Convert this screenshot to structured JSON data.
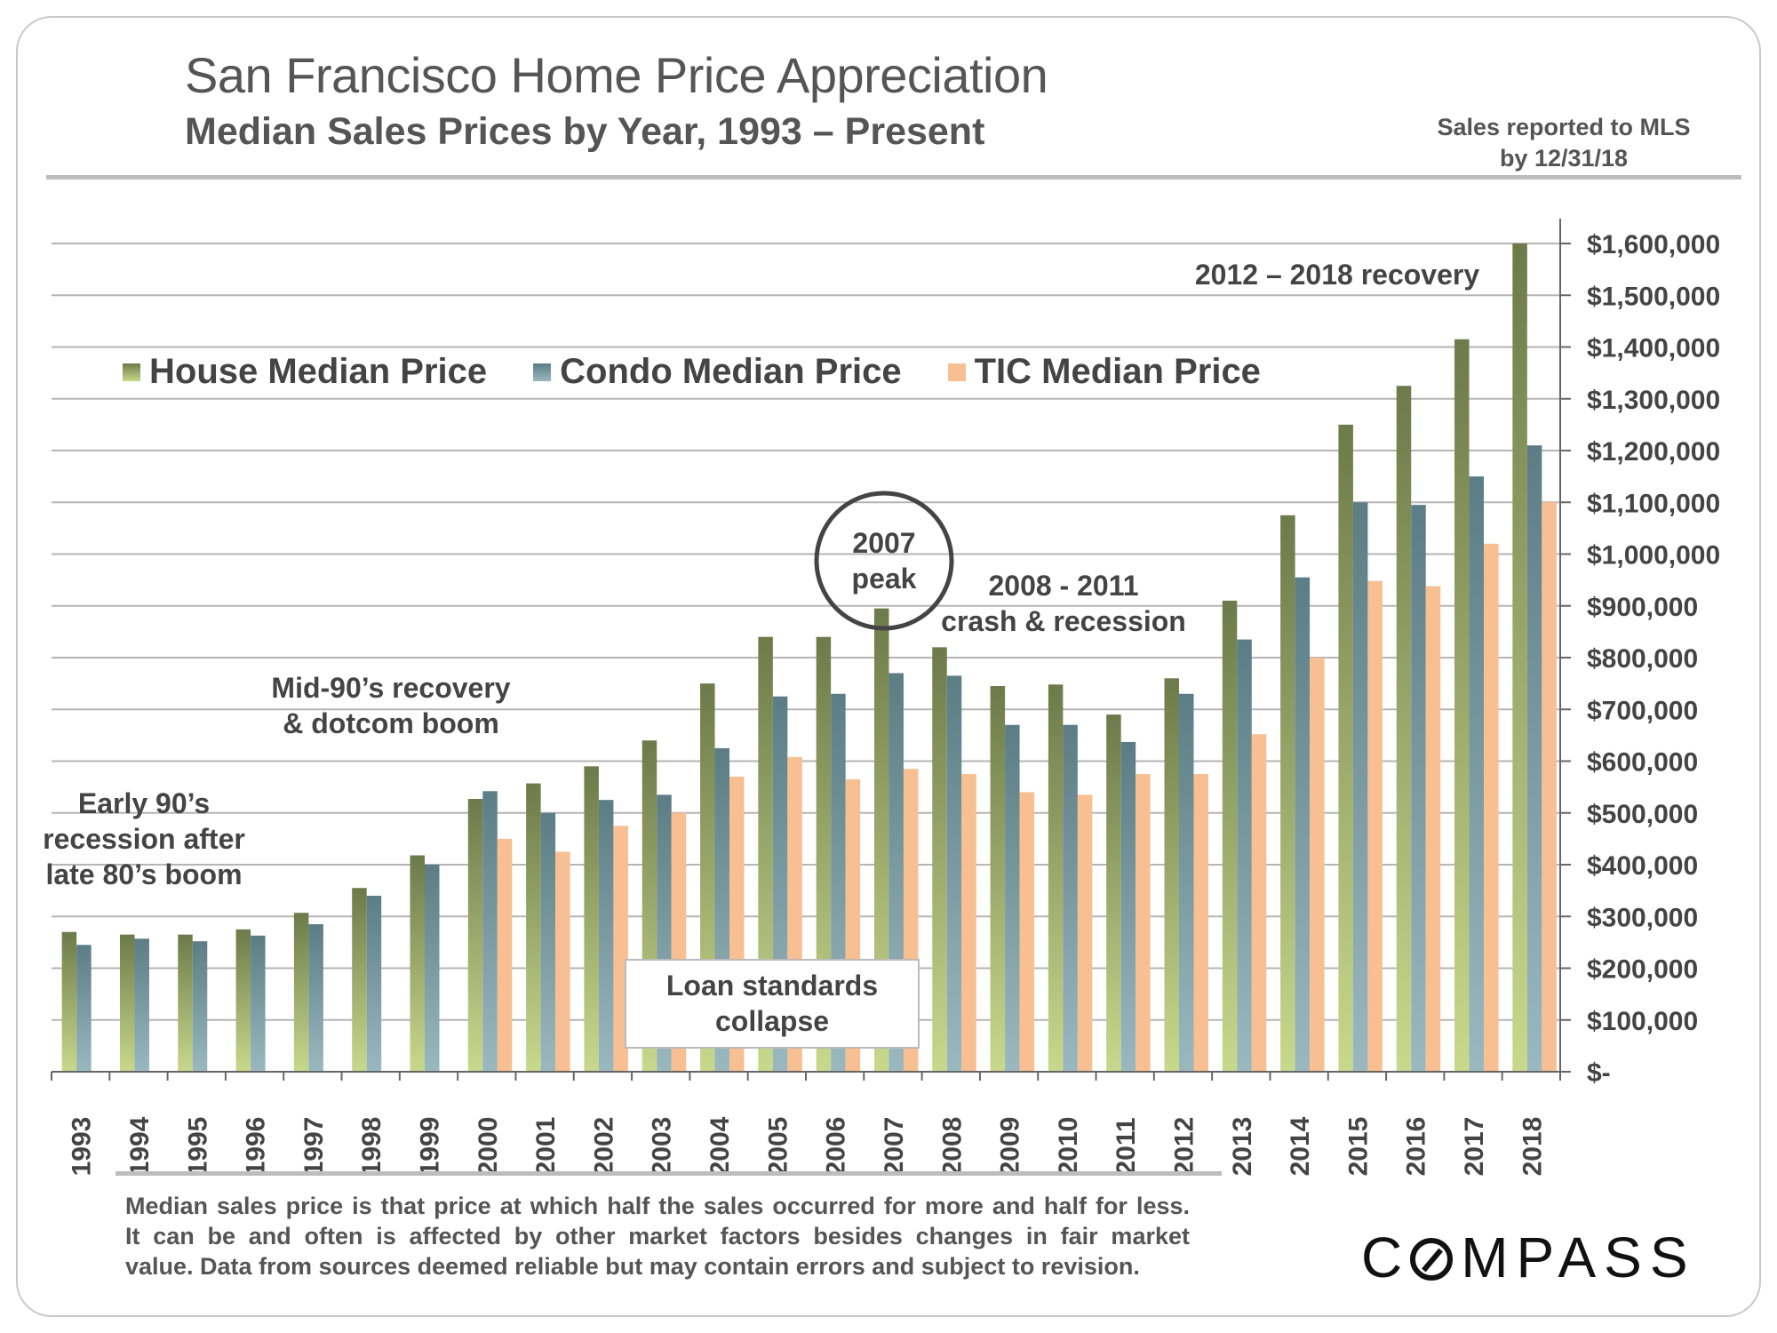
{
  "header": {
    "title": "San Francisco Home Price Appreciation",
    "subtitle": "Median Sales Prices by Year, 1993 – Present",
    "mls_note_line1": "Sales reported to MLS",
    "mls_note_line2": "by 12/31/18"
  },
  "colors": {
    "house_top": "#6d7a4a",
    "house_bottom": "#c8d98c",
    "condo_top": "#5c7d85",
    "condo_bottom": "#9ab8bf",
    "tic": "#f7bf92",
    "grid": "#b5b5b5",
    "axis": "#666666",
    "text": "#444444"
  },
  "legend": {
    "house": "House Median Price",
    "condo": "Condo Median Price",
    "tic": "TIC Median Price"
  },
  "annotations": {
    "early90s_1": "Early 90’s",
    "early90s_2": "recession after",
    "early90s_3": "late 80’s boom",
    "mid90s_1": "Mid-90’s recovery",
    "mid90s_2": "& dotcom boom",
    "peak_1": "2007",
    "peak_2": "peak",
    "crash_1": "2008 - 2011",
    "crash_2": "crash & recession",
    "recovery": "2012 – 2018 recovery",
    "loan_1": "Loan standards",
    "loan_2": "collapse"
  },
  "footnote": {
    "line1": "Median sales price is that price at which half the sales occurred for more and half for less.",
    "line2": "It can be and often is affected by other market factors besides changes in fair market",
    "line3": "value. Data from sources deemed reliable but may contain errors and subject to revision."
  },
  "logo": {
    "after_c": "MPASS"
  },
  "chart_data": {
    "type": "bar",
    "title": "San Francisco Home Price Appreciation",
    "subtitle": "Median Sales Prices by Year, 1993 – Present",
    "xlabel": "",
    "ylabel": "",
    "ylim": [
      0,
      1600000
    ],
    "grid": true,
    "legend_position": "top-left",
    "y_ticks": [
      0,
      100000,
      200000,
      300000,
      400000,
      500000,
      600000,
      700000,
      800000,
      900000,
      1000000,
      1100000,
      1200000,
      1300000,
      1400000,
      1500000,
      1600000
    ],
    "y_tick_labels": [
      "$-",
      "$100,000",
      "$200,000",
      "$300,000",
      "$400,000",
      "$500,000",
      "$600,000",
      "$700,000",
      "$800,000",
      "$900,000",
      "$1,000,000",
      "$1,100,000",
      "$1,200,000",
      "$1,300,000",
      "$1,400,000",
      "$1,500,000",
      "$1,600,000"
    ],
    "categories": [
      "1993",
      "1994",
      "1995",
      "1996",
      "1997",
      "1998",
      "1999",
      "2000",
      "2001",
      "2002",
      "2003",
      "2004",
      "2005",
      "2006",
      "2007",
      "2008",
      "2009",
      "2010",
      "2011",
      "2012",
      "2013",
      "2014",
      "2015",
      "2016",
      "2017",
      "2018"
    ],
    "series": [
      {
        "name": "House Median Price",
        "values": [
          270000,
          265000,
          265000,
          275000,
          307000,
          355000,
          418000,
          527000,
          557000,
          590000,
          640000,
          750000,
          840000,
          840000,
          895000,
          820000,
          745000,
          748000,
          690000,
          760000,
          910000,
          1075000,
          1250000,
          1325000,
          1415000,
          1600000
        ]
      },
      {
        "name": "Condo Median Price",
        "values": [
          245000,
          257000,
          252000,
          263000,
          285000,
          340000,
          400000,
          542000,
          500000,
          525000,
          535000,
          625000,
          725000,
          730000,
          770000,
          765000,
          670000,
          670000,
          637000,
          730000,
          835000,
          955000,
          1100000,
          1095000,
          1150000,
          1210000
        ]
      },
      {
        "name": "TIC Median Price",
        "values": [
          null,
          null,
          null,
          null,
          null,
          null,
          null,
          450000,
          425000,
          475000,
          500000,
          570000,
          608000,
          565000,
          585000,
          575000,
          540000,
          535000,
          575000,
          575000,
          652000,
          800000,
          948000,
          938000,
          1020000,
          1100000
        ]
      }
    ]
  }
}
